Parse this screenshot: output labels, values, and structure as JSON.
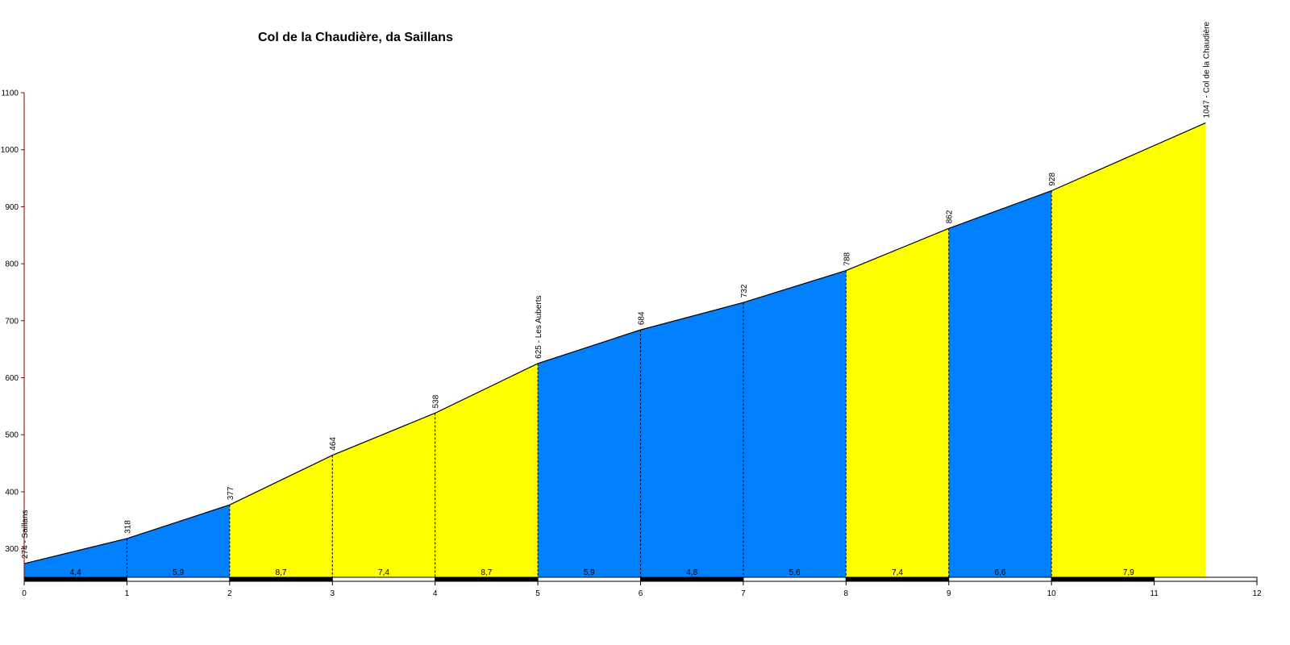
{
  "chart_data": {
    "type": "area",
    "title": "Col de la Chaudière, da Saillans",
    "xlabel": "",
    "ylabel": "",
    "xlim": [
      0,
      12
    ],
    "ylim": [
      250,
      1100
    ],
    "x_ticks": [
      0,
      1,
      2,
      3,
      4,
      5,
      6,
      7,
      8,
      9,
      10,
      11,
      12
    ],
    "y_ticks": [
      300,
      400,
      500,
      600,
      700,
      800,
      900,
      1000,
      1100
    ],
    "grid": false,
    "points": [
      {
        "x": 0,
        "y": 274,
        "label": "274 - Saillans"
      },
      {
        "x": 1,
        "y": 318,
        "label": "318"
      },
      {
        "x": 2,
        "y": 377,
        "label": "377"
      },
      {
        "x": 3,
        "y": 464,
        "label": "464"
      },
      {
        "x": 4,
        "y": 538,
        "label": "538"
      },
      {
        "x": 5,
        "y": 625,
        "label": "625 - Les Auberts"
      },
      {
        "x": 6,
        "y": 684,
        "label": "684"
      },
      {
        "x": 7,
        "y": 732,
        "label": "732"
      },
      {
        "x": 8,
        "y": 788,
        "label": "788"
      },
      {
        "x": 9,
        "y": 862,
        "label": "862"
      },
      {
        "x": 10,
        "y": 928,
        "label": "928"
      },
      {
        "x": 11.5,
        "y": 1047,
        "label": "1047 - Col de la Chaudière"
      }
    ],
    "segments": [
      {
        "from": 0,
        "to": 1,
        "gradient": "4,4",
        "color": "#0080ff"
      },
      {
        "from": 1,
        "to": 2,
        "gradient": "5,9",
        "color": "#0080ff"
      },
      {
        "from": 2,
        "to": 3,
        "gradient": "8,7",
        "color": "#ffff00"
      },
      {
        "from": 3,
        "to": 4,
        "gradient": "7,4",
        "color": "#ffff00"
      },
      {
        "from": 4,
        "to": 5,
        "gradient": "8,7",
        "color": "#ffff00"
      },
      {
        "from": 5,
        "to": 6,
        "gradient": "5,9",
        "color": "#0080ff"
      },
      {
        "from": 6,
        "to": 7,
        "gradient": "4,8",
        "color": "#0080ff"
      },
      {
        "from": 7,
        "to": 8,
        "gradient": "5,6",
        "color": "#0080ff"
      },
      {
        "from": 8,
        "to": 9,
        "gradient": "7,4",
        "color": "#ffff00"
      },
      {
        "from": 9,
        "to": 10,
        "gradient": "6,6",
        "color": "#0080ff"
      },
      {
        "from": 10,
        "to": 11.5,
        "gradient": "7,9",
        "color": "#ffff00"
      }
    ],
    "colors": {
      "easy": "#0080ff",
      "hard": "#ffff00",
      "axis": "#800000",
      "line": "#000000"
    }
  }
}
